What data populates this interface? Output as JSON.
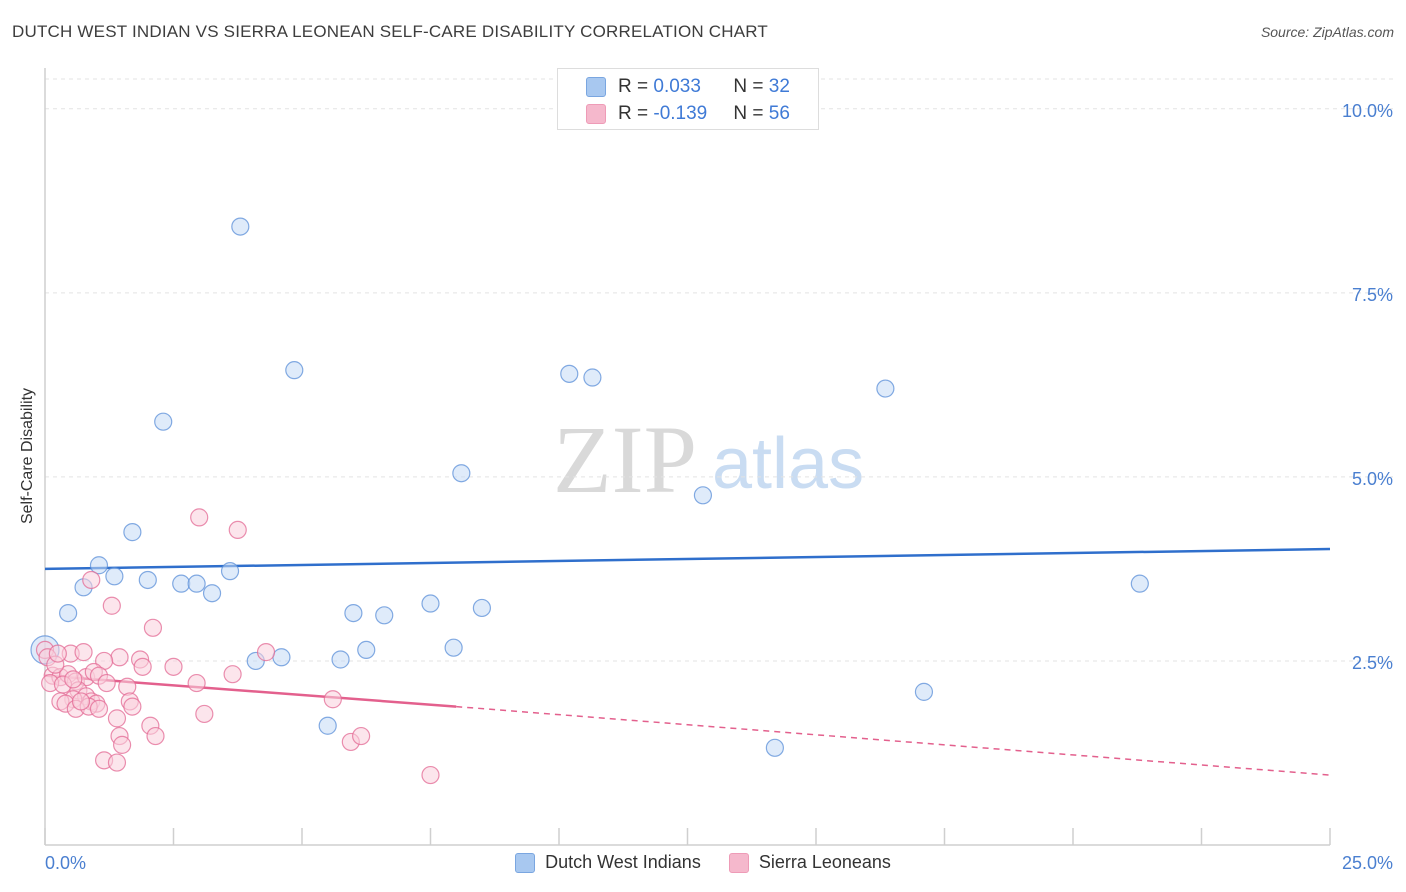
{
  "title": "DUTCH WEST INDIAN VS SIERRA LEONEAN SELF-CARE DISABILITY CORRELATION CHART",
  "source": "Source: ZipAtlas.com",
  "watermark": {
    "zip": "ZIP",
    "atlas": "atlas"
  },
  "stats": {
    "rows": [
      {
        "r_label": "R = ",
        "r_value": "0.033",
        "n_label": "N = ",
        "n_value": "32",
        "color": "#a8c8f0"
      },
      {
        "r_label": "R = ",
        "r_value": "-0.139",
        "n_label": "N = ",
        "n_value": "56",
        "color": "#f5b8cc"
      }
    ]
  },
  "legend": {
    "items": [
      {
        "label": "Dutch West Indians",
        "color": "#a8c8f0"
      },
      {
        "label": "Sierra Leoneans",
        "color": "#f5b8cc"
      }
    ]
  },
  "chart_data": {
    "type": "scatter",
    "title": "DUTCH WEST INDIAN VS SIERRA LEONEAN SELF-CARE DISABILITY CORRELATION CHART",
    "xlabel": "",
    "ylabel": "Self-Care Disability",
    "xlim": [
      0,
      25
    ],
    "ylim": [
      0,
      10.5
    ],
    "x_tick_labels": [
      "0.0%",
      "25.0%"
    ],
    "y_ticks": [
      2.5,
      5.0,
      7.5,
      10.0
    ],
    "y_tick_labels": [
      "2.5%",
      "5.0%",
      "7.5%",
      "10.0%"
    ],
    "grid": true,
    "series": [
      {
        "name": "Dutch West Indians",
        "color": "#5b8fd8",
        "fill": "#c5daf5",
        "trend": {
          "x0": 0,
          "y0": 3.75,
          "x1": 25,
          "y1": 4.02,
          "style": "solid"
        },
        "points": [
          [
            3.8,
            8.4
          ],
          [
            4.85,
            6.45
          ],
          [
            2.3,
            5.75
          ],
          [
            10.2,
            6.4
          ],
          [
            10.65,
            6.35
          ],
          [
            16.35,
            6.2
          ],
          [
            8.1,
            5.05
          ],
          [
            12.8,
            4.75
          ],
          [
            1.7,
            4.25
          ],
          [
            1.05,
            3.8
          ],
          [
            1.35,
            3.65
          ],
          [
            0.75,
            3.5
          ],
          [
            2.0,
            3.6
          ],
          [
            2.65,
            3.55
          ],
          [
            2.95,
            3.55
          ],
          [
            3.6,
            3.72
          ],
          [
            3.25,
            3.42
          ],
          [
            21.3,
            3.55
          ],
          [
            0.45,
            3.15
          ],
          [
            6.0,
            3.15
          ],
          [
            6.6,
            3.12
          ],
          [
            7.5,
            3.28
          ],
          [
            8.5,
            3.22
          ],
          [
            0.0,
            2.65
          ],
          [
            6.25,
            2.65
          ],
          [
            7.95,
            2.68
          ],
          [
            4.1,
            2.5
          ],
          [
            4.6,
            2.55
          ],
          [
            5.75,
            2.52
          ],
          [
            17.1,
            2.08
          ],
          [
            5.5,
            1.62
          ],
          [
            14.2,
            1.32
          ]
        ]
      },
      {
        "name": "Sierra Leoneans",
        "color": "#e36a94",
        "fill": "#f9cfdc",
        "trend": {
          "x0": 0,
          "y0": 2.3,
          "x1": 8.0,
          "y1": 1.88,
          "x2": 25,
          "y2": 0.95,
          "style": "solid-then-dashed"
        },
        "points": [
          [
            3.0,
            4.45
          ],
          [
            3.75,
            4.28
          ],
          [
            0.9,
            3.6
          ],
          [
            1.3,
            3.25
          ],
          [
            2.1,
            2.95
          ],
          [
            0.0,
            2.65
          ],
          [
            0.05,
            2.55
          ],
          [
            0.5,
            2.6
          ],
          [
            0.75,
            2.62
          ],
          [
            1.45,
            2.55
          ],
          [
            1.15,
            2.5
          ],
          [
            1.85,
            2.52
          ],
          [
            1.9,
            2.42
          ],
          [
            2.5,
            2.42
          ],
          [
            4.3,
            2.62
          ],
          [
            3.65,
            2.32
          ],
          [
            0.15,
            2.3
          ],
          [
            0.3,
            2.28
          ],
          [
            0.45,
            2.32
          ],
          [
            0.6,
            2.22
          ],
          [
            0.8,
            2.28
          ],
          [
            0.95,
            2.35
          ],
          [
            1.05,
            2.3
          ],
          [
            0.1,
            2.2
          ],
          [
            0.35,
            2.18
          ],
          [
            0.65,
            2.1
          ],
          [
            1.6,
            2.15
          ],
          [
            2.95,
            2.2
          ],
          [
            0.8,
            2.02
          ],
          [
            0.55,
            1.98
          ],
          [
            0.3,
            1.95
          ],
          [
            0.4,
            1.92
          ],
          [
            0.9,
            1.95
          ],
          [
            1.0,
            1.92
          ],
          [
            1.65,
            1.95
          ],
          [
            0.6,
            1.85
          ],
          [
            0.85,
            1.88
          ],
          [
            1.05,
            1.85
          ],
          [
            1.7,
            1.88
          ],
          [
            5.6,
            1.98
          ],
          [
            3.1,
            1.78
          ],
          [
            1.4,
            1.72
          ],
          [
            2.05,
            1.62
          ],
          [
            2.15,
            1.48
          ],
          [
            1.45,
            1.48
          ],
          [
            1.5,
            1.36
          ],
          [
            5.95,
            1.4
          ],
          [
            6.15,
            1.48
          ],
          [
            1.15,
            1.15
          ],
          [
            1.4,
            1.12
          ],
          [
            7.5,
            0.95
          ],
          [
            0.2,
            2.45
          ],
          [
            0.25,
            2.6
          ],
          [
            0.55,
            2.25
          ],
          [
            1.2,
            2.2
          ],
          [
            0.7,
            1.95
          ]
        ]
      }
    ]
  }
}
